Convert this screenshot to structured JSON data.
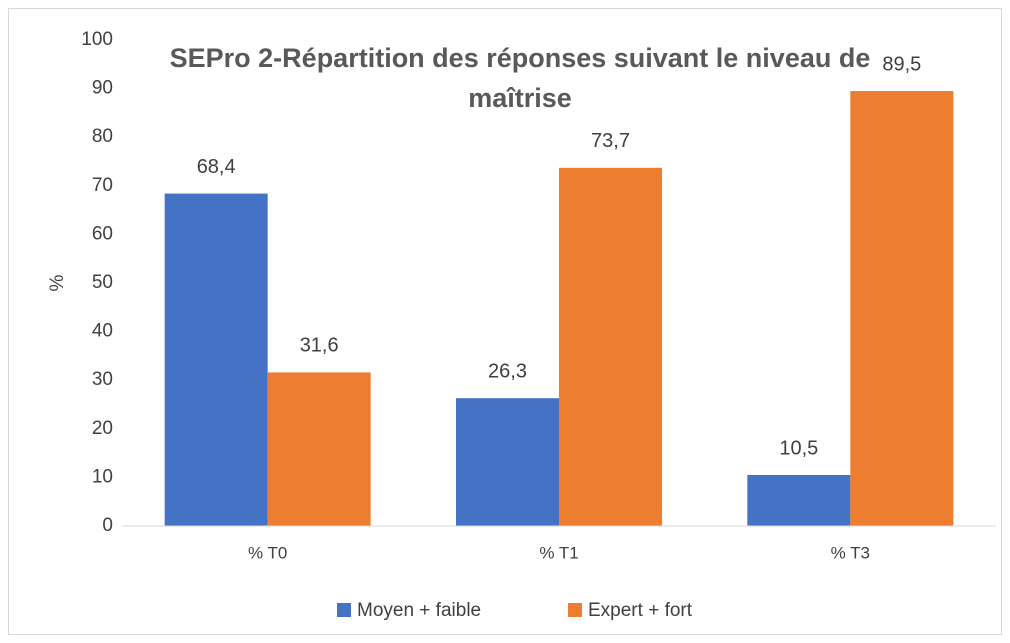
{
  "chart_data": {
    "type": "bar",
    "title": "SEPro 2-Répartition des réponses suivant le niveau de maîtrise",
    "ylabel": "%",
    "categories": [
      "% T0",
      "% T1",
      "% T3"
    ],
    "series": [
      {
        "name": "Moyen + faible",
        "color": "#4472c4",
        "values": [
          68.4,
          26.3,
          10.5
        ],
        "value_labels": [
          "68,4",
          "26,3",
          "10,5"
        ]
      },
      {
        "name": "Expert + fort",
        "color": "#ed7d31",
        "values": [
          31.6,
          73.7,
          89.5
        ],
        "value_labels": [
          "31,6",
          "73,7",
          "89,5"
        ]
      }
    ],
    "ylim": [
      0,
      100
    ],
    "yticks": [
      0,
      10,
      20,
      30,
      40,
      50,
      60,
      70,
      80,
      90,
      100
    ],
    "grid": false,
    "legend": "bottom"
  }
}
